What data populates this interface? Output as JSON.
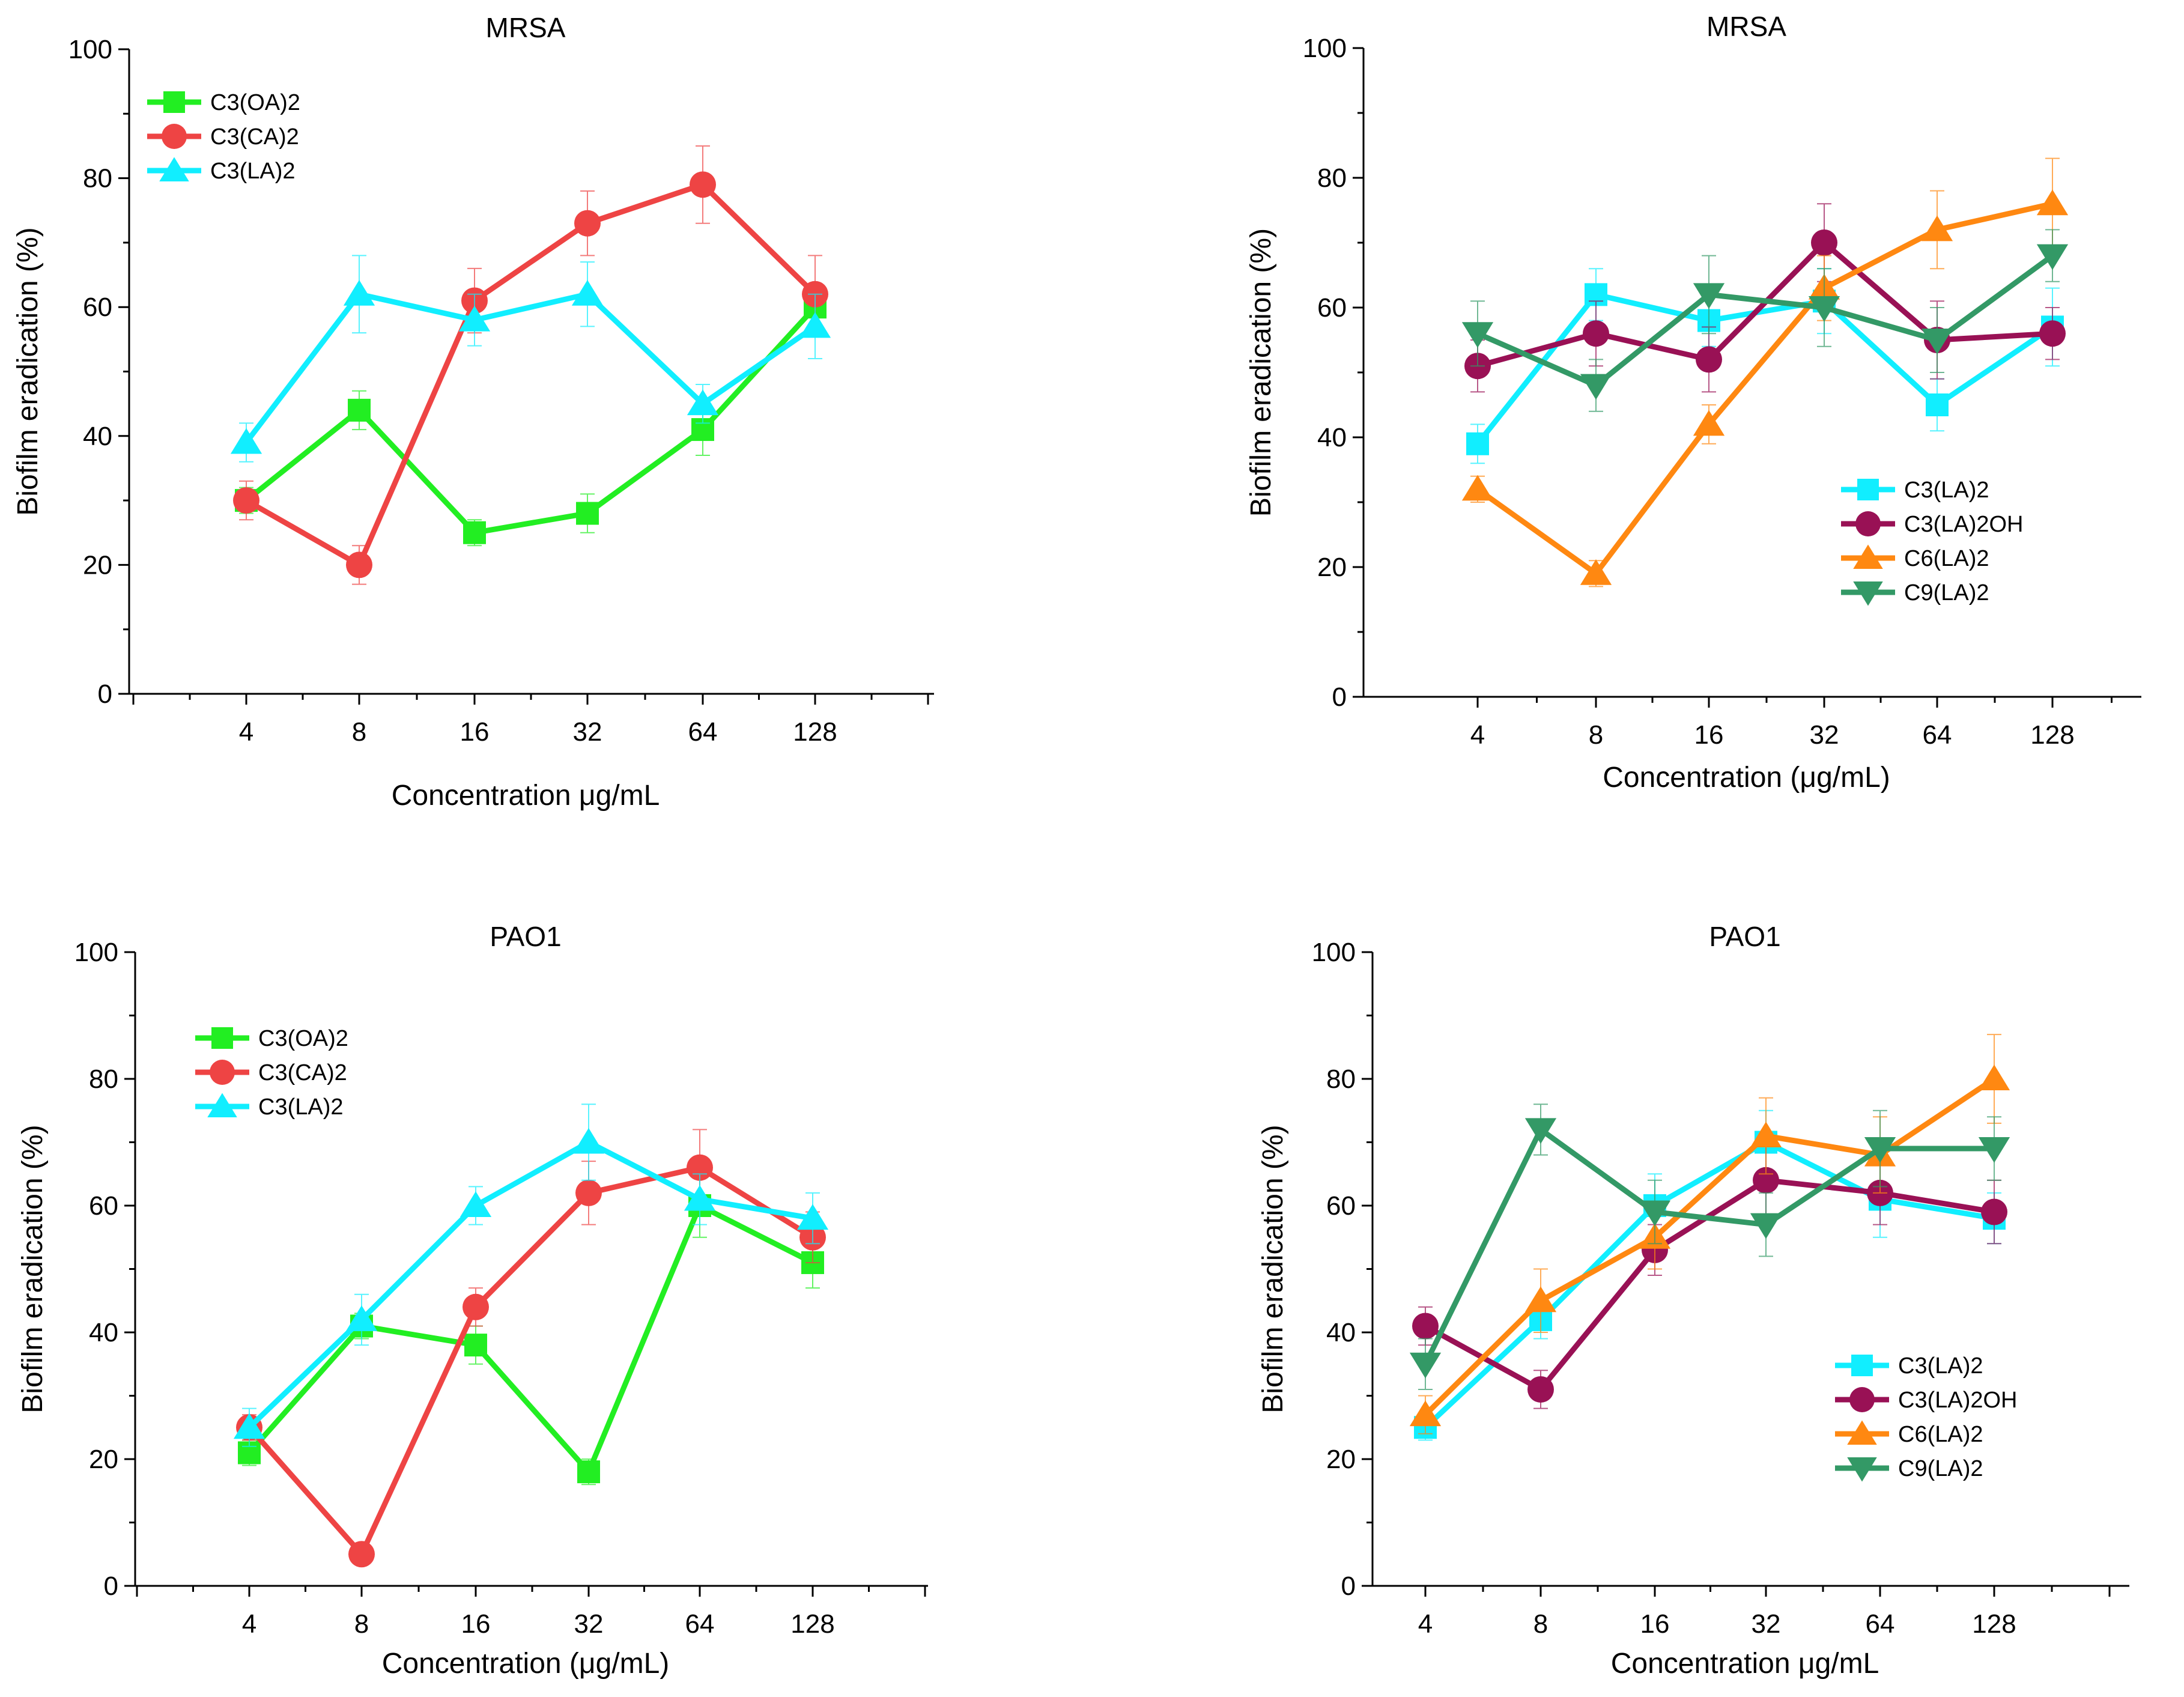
{
  "chart_data": [
    {
      "type": "line",
      "title": "MRSA",
      "xlabel": "Concentration μg/mL",
      "ylabel": "Biofilm eradication (%)",
      "categories": [
        "4",
        "8",
        "16",
        "32",
        "64",
        "128"
      ],
      "ylim": [
        0,
        100
      ],
      "yticks": [
        "0",
        "20",
        "40",
        "60",
        "80",
        "100"
      ],
      "legend_position": "top-left",
      "series": [
        {
          "name": "C3(OA)2",
          "color": "#22ee22",
          "marker": "square",
          "values": [
            30,
            44,
            25,
            28,
            41,
            60
          ],
          "errors": [
            2,
            3,
            2,
            3,
            4,
            3
          ]
        },
        {
          "name": "C3(CA)2",
          "color": "#ee4444",
          "marker": "circle",
          "values": [
            30,
            20,
            61,
            73,
            79,
            62
          ],
          "errors": [
            3,
            3,
            5,
            5,
            6,
            6
          ]
        },
        {
          "name": "C3(LA)2",
          "color": "#11eeff",
          "marker": "triangle-up",
          "values": [
            39,
            62,
            58,
            62,
            45,
            57
          ],
          "errors": [
            3,
            6,
            4,
            5,
            3,
            5
          ]
        }
      ]
    },
    {
      "type": "line",
      "title": "MRSA",
      "xlabel": "Concentration (μg/mL)",
      "ylabel": "Biofilm eradication (%)",
      "categories": [
        "4",
        "8",
        "16",
        "32",
        "64",
        "128"
      ],
      "ylim": [
        0,
        100
      ],
      "yticks": [
        "0",
        "20",
        "40",
        "60",
        "80",
        "100"
      ],
      "legend_position": "bottom-right",
      "series": [
        {
          "name": "C3(LA)2",
          "color": "#11eeff",
          "marker": "square",
          "values": [
            39,
            62,
            58,
            61,
            45,
            57
          ],
          "errors": [
            3,
            4,
            4,
            5,
            4,
            6
          ]
        },
        {
          "name": "C3(LA)2OH",
          "color": "#991155",
          "marker": "circle",
          "values": [
            51,
            56,
            52,
            70,
            55,
            56
          ],
          "errors": [
            4,
            5,
            5,
            6,
            6,
            4
          ]
        },
        {
          "name": "C6(LA)2",
          "color": "#ff8811",
          "marker": "triangle-up",
          "values": [
            32,
            19,
            42,
            63,
            72,
            76
          ],
          "errors": [
            2,
            2,
            3,
            5,
            6,
            7
          ]
        },
        {
          "name": "C9(LA)2",
          "color": "#339966",
          "marker": "triangle-down",
          "values": [
            56,
            48,
            62,
            60,
            55,
            68
          ],
          "errors": [
            5,
            4,
            6,
            6,
            5,
            4
          ]
        }
      ]
    },
    {
      "type": "line",
      "title": "PAO1",
      "xlabel": "Concentration (μg/mL)",
      "ylabel": "Biofilm eradication (%)",
      "categories": [
        "4",
        "8",
        "16",
        "32",
        "64",
        "128"
      ],
      "ylim": [
        0,
        100
      ],
      "yticks": [
        "0",
        "20",
        "40",
        "60",
        "80",
        "100"
      ],
      "legend_position": "top-left",
      "series": [
        {
          "name": "C3(OA)2",
          "color": "#22ee22",
          "marker": "square",
          "values": [
            21,
            41,
            38,
            18,
            60,
            51
          ],
          "errors": [
            2,
            2,
            3,
            2,
            5,
            4
          ]
        },
        {
          "name": "C3(CA)2",
          "color": "#ee4444",
          "marker": "circle",
          "values": [
            25,
            5,
            44,
            62,
            66,
            55
          ],
          "errors": [
            2,
            1,
            3,
            5,
            6,
            4
          ]
        },
        {
          "name": "C3(LA)2",
          "color": "#11eeff",
          "marker": "triangle-up",
          "values": [
            25,
            42,
            60,
            70,
            61,
            58
          ],
          "errors": [
            3,
            4,
            3,
            6,
            4,
            4
          ]
        }
      ]
    },
    {
      "type": "line",
      "title": "PAO1",
      "xlabel": "Concentration μg/mL",
      "ylabel": "Biofilm eradication (%)",
      "categories": [
        "4",
        "8",
        "16",
        "32",
        "64",
        "128"
      ],
      "ylim": [
        0,
        100
      ],
      "yticks": [
        "0",
        "20",
        "40",
        "60",
        "80",
        "100"
      ],
      "legend_position": "bottom-right",
      "series": [
        {
          "name": "C3(LA)2",
          "color": "#11eeff",
          "marker": "square",
          "values": [
            25,
            42,
            60,
            70,
            61,
            58
          ],
          "errors": [
            2,
            3,
            5,
            5,
            6,
            4
          ]
        },
        {
          "name": "C3(LA)2OH",
          "color": "#991155",
          "marker": "circle",
          "values": [
            41,
            31,
            53,
            64,
            62,
            59
          ],
          "errors": [
            3,
            3,
            4,
            6,
            5,
            5
          ]
        },
        {
          "name": "C6(LA)2",
          "color": "#ff8811",
          "marker": "triangle-up",
          "values": [
            27,
            45,
            55,
            71,
            68,
            80
          ],
          "errors": [
            3,
            5,
            5,
            6,
            6,
            7
          ]
        },
        {
          "name": "C9(LA)2",
          "color": "#339966",
          "marker": "triangle-down",
          "values": [
            35,
            72,
            59,
            57,
            69,
            69
          ],
          "errors": [
            4,
            4,
            5,
            5,
            6,
            5
          ]
        }
      ]
    }
  ]
}
